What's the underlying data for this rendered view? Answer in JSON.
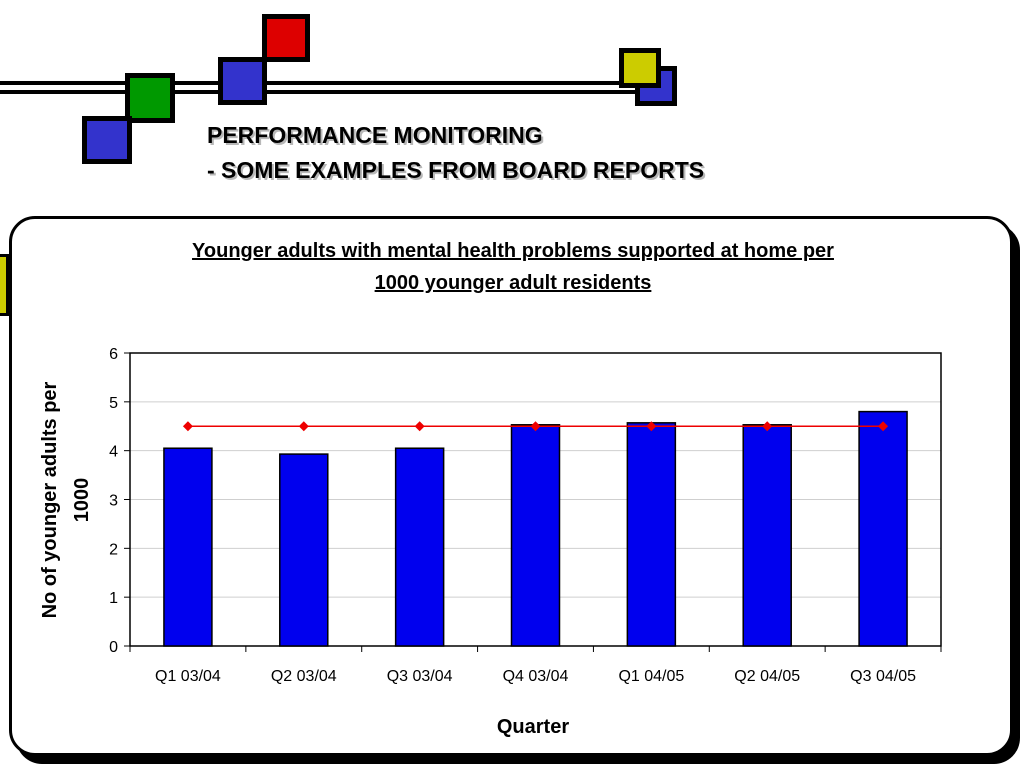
{
  "slide": {
    "title_line1": "PERFORMANCE MONITORING",
    "title_line2": "- SOME EXAMPLES FROM BOARD REPORTS",
    "colors": {
      "red": "#dd0000",
      "green": "#009900",
      "blue": "#3333cc",
      "yellow": "#cccc00",
      "border": "#000000"
    }
  },
  "chart_data": {
    "type": "bar",
    "title_line1": "Younger adults with mental health problems supported at home per",
    "title_line2": "1000 younger adult residents",
    "xlabel": "Quarter",
    "ylabel_line1": "No of younger adults per",
    "ylabel_line2": "1000",
    "categories": [
      "Q1 03/04",
      "Q2 03/04",
      "Q3 03/04",
      "Q4 03/04",
      "Q1 04/05",
      "Q2 04/05",
      "Q3 04/05"
    ],
    "ylim": [
      0,
      6
    ],
    "yticks": [
      "0",
      "1",
      "2",
      "3",
      "4",
      "5",
      "6"
    ],
    "grid": true,
    "legend": "none",
    "series": [
      {
        "type": "bar",
        "values": [
          4.05,
          3.93,
          4.05,
          4.53,
          4.57,
          4.53,
          4.8
        ],
        "color": "#0000ee"
      },
      {
        "type": "line",
        "values": [
          4.5,
          4.5,
          4.5,
          4.5,
          4.5,
          4.5,
          4.5
        ],
        "color": "#ee0000",
        "marker": "diamond"
      }
    ]
  }
}
